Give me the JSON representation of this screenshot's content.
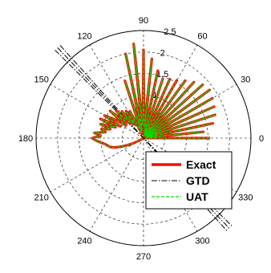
{
  "chart_data": {
    "type": "polar-line",
    "title": "",
    "angle_unit": "degrees",
    "angle_ticks": [
      "0",
      "30",
      "60",
      "90",
      "120",
      "150",
      "180",
      "210",
      "240",
      "270",
      "300",
      "330"
    ],
    "radial_ticks": [
      "0.5",
      "1",
      "1.5",
      "2",
      "2.5"
    ],
    "rlim": [
      0,
      2.5
    ],
    "grid": true,
    "legend_position": "bottom-right",
    "legend": [
      "Exact",
      "GTD",
      "UAT"
    ],
    "colors": {
      "Exact": "#ee1100",
      "GTD": "#000000",
      "UAT": "#00dd00"
    },
    "line_styles": {
      "Exact": "solid",
      "GTD": "dash-dot",
      "UAT": "dashed"
    },
    "series": [
      {
        "name": "Exact",
        "theta": [
          0,
          3,
          6,
          9,
          12,
          15,
          18,
          21,
          24,
          27,
          30,
          33,
          36,
          39,
          42,
          45,
          48,
          51,
          54,
          57,
          60,
          63,
          66,
          69,
          72,
          75,
          78,
          81,
          84,
          87,
          90,
          93,
          96,
          99,
          102,
          105,
          108,
          111,
          114,
          117,
          120,
          123,
          126,
          129,
          132,
          135,
          138,
          141,
          144,
          147,
          150,
          153,
          156,
          159,
          162,
          165,
          168,
          171,
          174,
          177,
          180,
          183,
          186,
          189,
          192,
          195,
          198,
          201,
          204,
          207,
          210,
          213,
          216,
          219,
          222,
          225,
          228,
          231,
          234,
          237,
          240,
          243,
          246,
          249,
          252,
          255,
          258,
          261,
          264,
          267,
          270
        ],
        "r": [
          1.55,
          0.05,
          1.4,
          0.08,
          1.65,
          0.06,
          1.75,
          0.09,
          1.8,
          0.07,
          1.85,
          0.08,
          1.9,
          0.09,
          1.85,
          0.06,
          1.75,
          0.08,
          1.65,
          0.05,
          1.55,
          0.07,
          1.5,
          0.06,
          1.45,
          0.08,
          1.6,
          0.12,
          1.85,
          0.25,
          2.05,
          0.3,
          2.2,
          0.2,
          2.0,
          0.15,
          1.4,
          0.1,
          0.3,
          0.7,
          0.35,
          0.75,
          0.4,
          0.8,
          0.45,
          0.9,
          0.55,
          1.0,
          0.5,
          0.8,
          1.05,
          0.6,
          1.1,
          0.7,
          1.05,
          0.8,
          1.0,
          0.9,
          1.15,
          1.0,
          1.2,
          1.1,
          1.0,
          0.9,
          0.85,
          0.8,
          0.7,
          0.55,
          0.4,
          0.25,
          0.1,
          0.0,
          0.0,
          0.0,
          0.0,
          0.0,
          0.0,
          0.0,
          0.0,
          0.0,
          0.0,
          0.0,
          0.0,
          0.0,
          0.0,
          0.0,
          0.0,
          0.0,
          0.0,
          0.0,
          0.0
        ]
      },
      {
        "name": "UAT",
        "theta": [
          0,
          3,
          6,
          9,
          12,
          15,
          18,
          21,
          24,
          27,
          30,
          33,
          36,
          39,
          42,
          45,
          48,
          51,
          54,
          57,
          60,
          63,
          66,
          69,
          72,
          75,
          78,
          81,
          84,
          87,
          90,
          93,
          96,
          99,
          102,
          105,
          108,
          111,
          114,
          117,
          120,
          123,
          126,
          129,
          132,
          135,
          138,
          141,
          144,
          147,
          150,
          153,
          156,
          159,
          162,
          165,
          168,
          171,
          174,
          177,
          180,
          183,
          186,
          189,
          192,
          195,
          198,
          201,
          204,
          207,
          210,
          213,
          216,
          219,
          222,
          225,
          228,
          231,
          234,
          237,
          240,
          243,
          246,
          249,
          252,
          255,
          258,
          261,
          264,
          267,
          270
        ],
        "r": [
          1.55,
          0.05,
          1.4,
          0.08,
          1.65,
          0.06,
          1.75,
          0.09,
          1.8,
          0.07,
          1.85,
          0.08,
          1.9,
          0.09,
          1.85,
          0.06,
          1.75,
          0.08,
          1.65,
          0.05,
          1.55,
          0.07,
          1.5,
          0.06,
          1.45,
          0.08,
          1.6,
          0.12,
          1.85,
          0.25,
          2.05,
          0.3,
          2.2,
          0.2,
          2.0,
          0.15,
          1.4,
          0.1,
          0.3,
          0.7,
          0.35,
          0.75,
          0.4,
          0.8,
          0.45,
          0.9,
          0.55,
          1.0,
          0.5,
          0.8,
          1.05,
          0.6,
          1.1,
          0.7,
          1.05,
          0.8,
          1.0,
          0.9,
          1.15,
          1.0,
          1.2,
          1.1,
          1.0,
          0.9,
          0.85,
          0.8,
          0.7,
          0.55,
          0.4,
          0.25,
          0.1,
          0.0,
          0.0,
          0.0,
          0.0,
          0.0,
          0.0,
          0.0,
          0.0,
          0.0,
          0.0,
          0.0,
          0.0,
          0.0,
          0.0,
          0.0,
          0.0,
          0.0,
          0.0,
          0.0,
          0.0
        ]
      },
      {
        "name": "GTD",
        "segments": [
          {
            "theta": [
              135.2,
              315.2
            ],
            "r": [
              2.9,
              2.9
            ]
          },
          {
            "theta": [
              133.6,
              313.6
            ],
            "r": [
              2.9,
              2.9
            ]
          },
          {
            "theta": [
              132.0,
              312.0
            ],
            "r": [
              2.9,
              2.9
            ]
          }
        ]
      }
    ]
  }
}
